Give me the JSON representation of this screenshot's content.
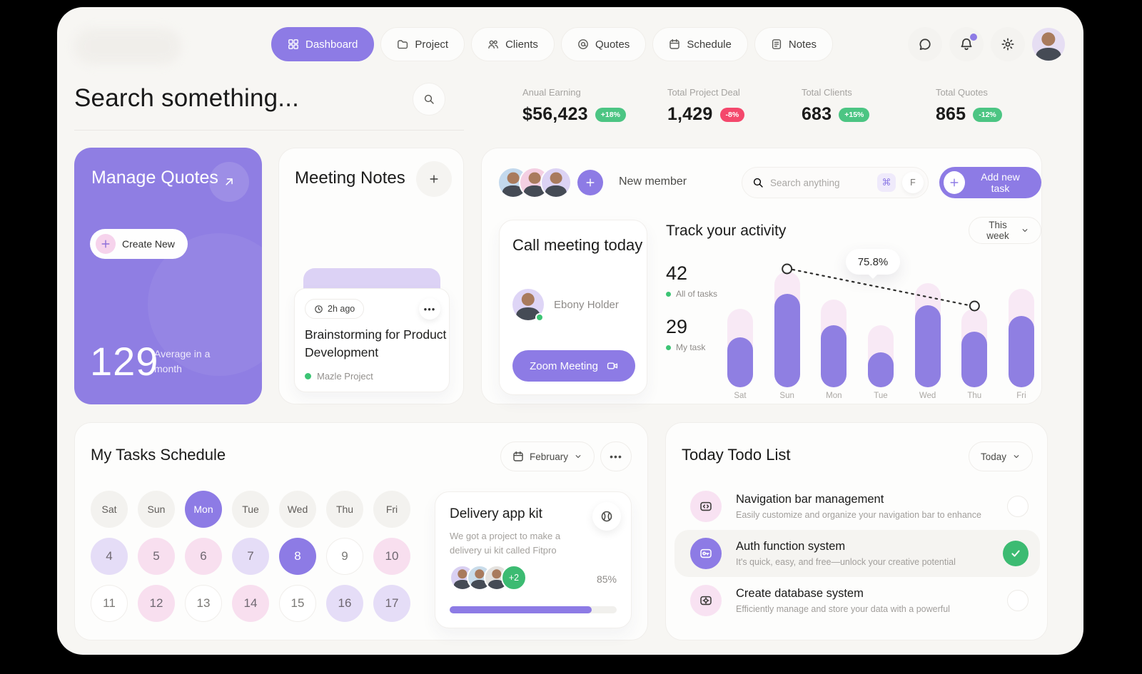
{
  "app": {
    "accent": "#8D7BE5",
    "green": "#3CBB72",
    "red": "#F4486C"
  },
  "nav": {
    "tabs": [
      {
        "label": "Dashboard",
        "icon": "grid",
        "active": true
      },
      {
        "label": "Project",
        "icon": "folder",
        "active": false
      },
      {
        "label": "Clients",
        "icon": "users",
        "active": false
      },
      {
        "label": "Quotes",
        "icon": "quote",
        "active": false
      },
      {
        "label": "Schedule",
        "icon": "calendar",
        "active": false
      },
      {
        "label": "Notes",
        "icon": "note",
        "active": false
      }
    ],
    "actions": [
      {
        "name": "messages",
        "icon": "chat",
        "badge": false
      },
      {
        "name": "notifications",
        "icon": "bell",
        "badge": true
      },
      {
        "name": "settings",
        "icon": "gear",
        "badge": false
      }
    ]
  },
  "search": {
    "heading": "Search something..."
  },
  "stats": [
    {
      "label": "Anual Earning",
      "value": "$56,423",
      "badge": "+18%",
      "badge_color": "#4CC583"
    },
    {
      "label": "Total Project Deal",
      "value": "1,429",
      "badge": "-8%",
      "badge_color": "#F4486C"
    },
    {
      "label": "Total Clients",
      "value": "683",
      "badge": "+15%",
      "badge_color": "#4CC583"
    },
    {
      "label": "Total Quotes",
      "value": "865",
      "badge": "-12%",
      "badge_color": "#4CC583"
    }
  ],
  "manage_quotes": {
    "title": "Manage Quotes",
    "button": "Create New",
    "value": "129",
    "caption": "Average in a month"
  },
  "meeting_notes": {
    "title": "Meeting Notes",
    "note": {
      "time": "2h ago",
      "title": "Brainstorming for Product Development",
      "project": "Mazle Project",
      "menu": "•••"
    }
  },
  "team": {
    "avatars": [
      "#C3D9ED",
      "#F4CFE2",
      "#DCD3F4"
    ],
    "new_member_label": "New member",
    "search_placeholder": "Search anything",
    "shortcut_cmd": "⌘",
    "shortcut_key": "F",
    "add_task_label": "Add new task"
  },
  "call_meeting": {
    "title": "Call meeting today",
    "person": "Ebony Holder",
    "button": "Zoom Meeting"
  },
  "activity": {
    "title": "Track your activity",
    "period": "This week",
    "kpis": [
      {
        "value": "42",
        "label": "All of tasks"
      },
      {
        "value": "29",
        "label": "My task"
      }
    ],
    "tooltip": "75.8%"
  },
  "chart_data": {
    "type": "bar",
    "categories": [
      "Sat",
      "Sun",
      "Mon",
      "Tue",
      "Wed",
      "Thu",
      "Fri"
    ],
    "series": [
      {
        "name": "All of tasks",
        "color": "#F8E9F5",
        "values": [
          68,
          100,
          76,
          54,
          90,
          68,
          85
        ]
      },
      {
        "name": "My task",
        "color": "#8F7FE2",
        "values": [
          43,
          81,
          54,
          30,
          71,
          48,
          62
        ]
      }
    ],
    "ylim": [
      0,
      100
    ],
    "legend_position": "left",
    "grid": false,
    "annotation": {
      "label": "75.8%",
      "from": "Sun",
      "to": "Thu"
    }
  },
  "schedule": {
    "title": "My Tasks Schedule",
    "month": "February",
    "menu": "•••",
    "day_headers": [
      {
        "label": "Sat",
        "active": false
      },
      {
        "label": "Sun",
        "active": false
      },
      {
        "label": "Mon",
        "active": true
      },
      {
        "label": "Tue",
        "active": false
      },
      {
        "label": "Wed",
        "active": false
      },
      {
        "label": "Thu",
        "active": false
      },
      {
        "label": "Fri",
        "active": false
      }
    ],
    "dates": [
      {
        "day": "4",
        "variant": "lavender"
      },
      {
        "day": "5",
        "variant": "pink"
      },
      {
        "day": "6",
        "variant": "pink"
      },
      {
        "day": "7",
        "variant": "lavender"
      },
      {
        "day": "8",
        "variant": "selected"
      },
      {
        "day": "9",
        "variant": "plain"
      },
      {
        "day": "10",
        "variant": "pink"
      },
      {
        "day": "11",
        "variant": "plain"
      },
      {
        "day": "12",
        "variant": "pink"
      },
      {
        "day": "13",
        "variant": "plain"
      },
      {
        "day": "14",
        "variant": "pink"
      },
      {
        "day": "15",
        "variant": "plain"
      },
      {
        "day": "16",
        "variant": "lavender"
      },
      {
        "day": "17",
        "variant": "lavender"
      }
    ]
  },
  "delivery": {
    "title": "Delivery app kit",
    "description": "We got a project to make a delivery ui kit called Fitpro",
    "avatars": [
      "#D9D0F2",
      "#C9DCEA",
      "#E4E2DF"
    ],
    "more_count": "+2",
    "progress_label": "85%",
    "progress": 85
  },
  "todo": {
    "title": "Today Todo List",
    "period": "Today",
    "items": [
      {
        "icon": "code",
        "title": "Navigation bar management",
        "description": "Easily customize and organize your navigation bar to enhance",
        "done": false,
        "highlight": false
      },
      {
        "icon": "key",
        "title": "Auth function system",
        "description": "It's quick, easy, and free—unlock your creative potential",
        "done": true,
        "highlight": true
      },
      {
        "icon": "db",
        "title": "Create database system",
        "description": "Efficiently manage and store your data with a powerful",
        "done": false,
        "highlight": false
      }
    ]
  }
}
